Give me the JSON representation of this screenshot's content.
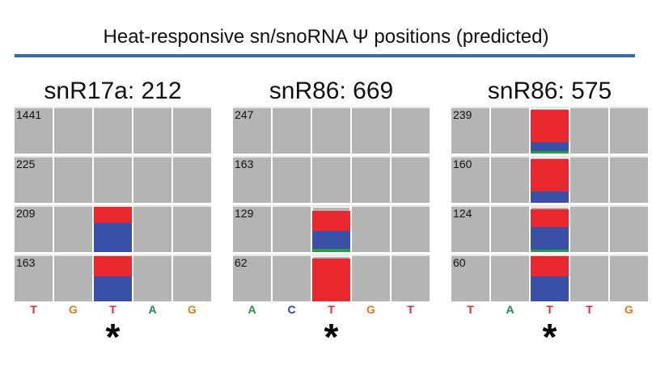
{
  "title": "Heat-responsive sn/snoRNA Ψ positions (predicted)",
  "colors": {
    "rule": "#2e6db4",
    "coverage": "#b4b4b4",
    "T": "#e8282d",
    "C": "#3a4fa6",
    "G": "#2e9b45",
    "A_base_letter": "#1e8f3a",
    "G_base_letter": "#e07a1c",
    "C_base_letter": "#2b3fa0"
  },
  "panels": [
    {
      "title": "snR17a: 212",
      "star_index": 2,
      "bases": [
        "T",
        "G",
        "T",
        "A",
        "G"
      ],
      "rows": [
        {
          "depth": "1441",
          "mismatch": null
        },
        {
          "depth": "225",
          "mismatch": null
        },
        {
          "depth": "209",
          "mismatch": {
            "T": 0.35,
            "C": 0.65,
            "G": 0.0
          }
        },
        {
          "depth": "163",
          "mismatch": {
            "T": 0.45,
            "C": 0.55,
            "G": 0.0
          }
        }
      ]
    },
    {
      "title": "snR86: 669",
      "star_index": 2,
      "bases": [
        "A",
        "C",
        "T",
        "G",
        "T"
      ],
      "rows": [
        {
          "depth": "247",
          "mismatch": null
        },
        {
          "depth": "163",
          "mismatch": null
        },
        {
          "depth": "129",
          "mismatch": {
            "T": 0.45,
            "C": 0.4,
            "G": 0.08
          }
        },
        {
          "depth": "62",
          "mismatch": {
            "T": 0.95,
            "C": 0.0,
            "G": 0.0
          }
        }
      ]
    },
    {
      "title": "snR86: 575",
      "star_index": 2,
      "bases": [
        "T",
        "A",
        "T",
        "T",
        "G"
      ],
      "rows": [
        {
          "depth": "239",
          "mismatch": {
            "T": 0.72,
            "C": 0.2,
            "G": 0.06
          }
        },
        {
          "depth": "160",
          "mismatch": {
            "T": 0.72,
            "C": 0.25,
            "G": 0.0
          }
        },
        {
          "depth": "124",
          "mismatch": {
            "T": 0.4,
            "C": 0.5,
            "G": 0.06
          }
        },
        {
          "depth": "60",
          "mismatch": {
            "T": 0.45,
            "C": 0.55,
            "G": 0.0
          }
        }
      ]
    }
  ]
}
